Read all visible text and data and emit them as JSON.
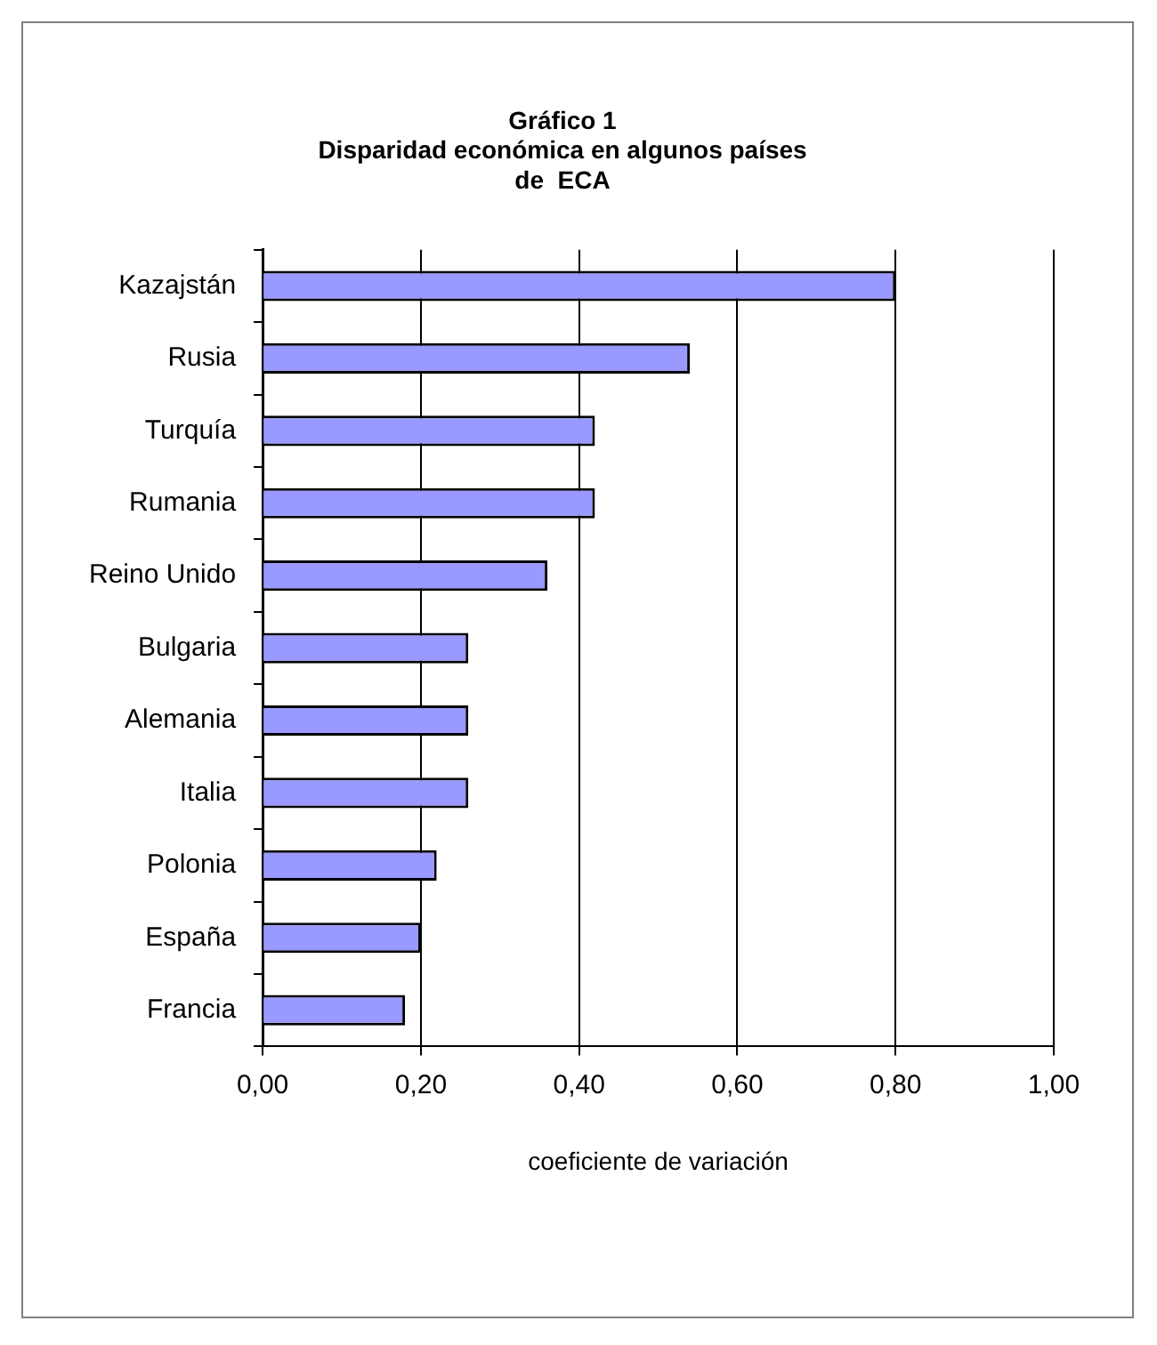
{
  "chart_data": {
    "type": "bar",
    "orientation": "horizontal",
    "title": "Gráfico 1\nDisparidad económica en algunos países\nde  ECA",
    "xlabel": "coeficiente de variación",
    "categories": [
      "Kazajstán",
      "Rusia",
      "Turquía",
      "Rumania",
      "Reino Unido",
      "Bulgaria",
      "Alemania",
      "Italia",
      "Polonia",
      "España",
      "Francia"
    ],
    "values": [
      0.8,
      0.54,
      0.42,
      0.42,
      0.36,
      0.26,
      0.26,
      0.26,
      0.22,
      0.2,
      0.18
    ],
    "color": "#9999ff",
    "xlim": [
      0,
      1
    ],
    "xticks": [
      {
        "value": 0,
        "label": "0,00"
      },
      {
        "value": 0.2,
        "label": "0,20"
      },
      {
        "value": 0.4,
        "label": "0,40"
      },
      {
        "value": 0.6,
        "label": "0,60"
      },
      {
        "value": 0.8,
        "label": "0,80"
      },
      {
        "value": 1,
        "label": "1,00"
      }
    ],
    "grid": "x",
    "legend": false
  }
}
